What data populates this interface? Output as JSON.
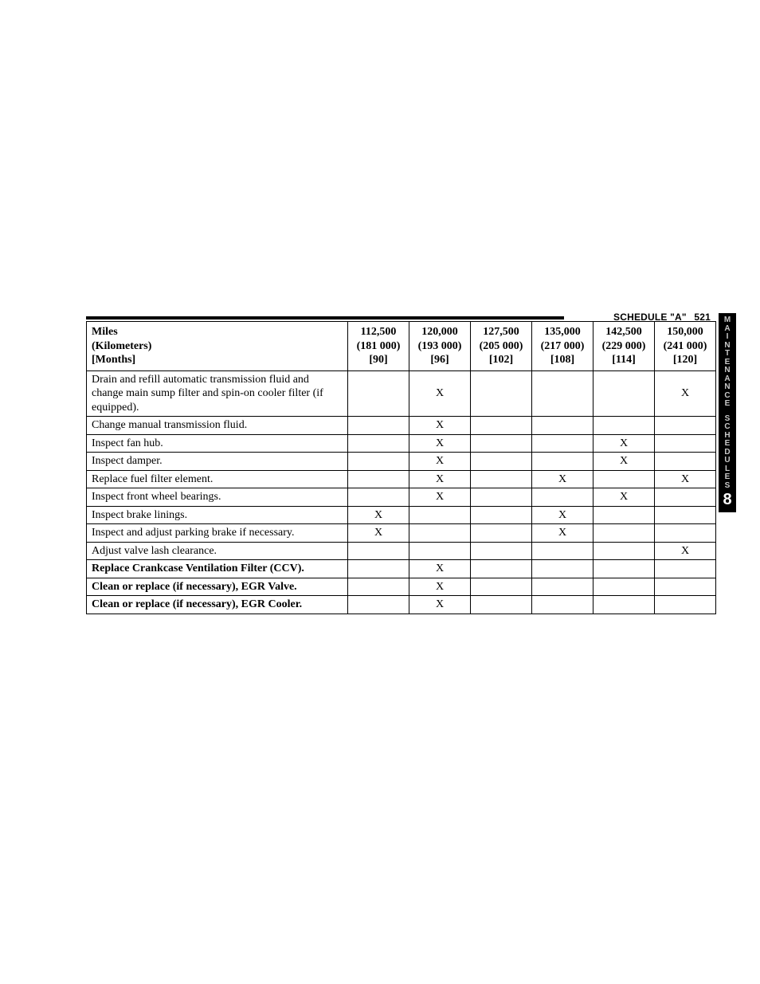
{
  "header": {
    "section_title": "SCHEDULE \"A\"",
    "page_number": "521"
  },
  "side_tab": {
    "line1": "MAINTENANCE",
    "line2": "SCHEDULES",
    "chapter": "8"
  },
  "table": {
    "row_header": {
      "miles_label": "Miles",
      "kilometers_label": "(Kilometers)",
      "months_label": "[Months]"
    },
    "columns": [
      {
        "miles": "112,500",
        "kms": "(181 000)",
        "months": "[90]"
      },
      {
        "miles": "120,000",
        "kms": "(193 000)",
        "months": "[96]"
      },
      {
        "miles": "127,500",
        "kms": "(205 000)",
        "months": "[102]"
      },
      {
        "miles": "135,000",
        "kms": "(217 000)",
        "months": "[108]"
      },
      {
        "miles": "142,500",
        "kms": "(229 000)",
        "months": "[114]"
      },
      {
        "miles": "150,000",
        "kms": "(241 000)",
        "months": "[120]"
      }
    ],
    "rows": [
      {
        "task": "Drain and refill automatic transmission fluid and change main sump filter and spin-on cooler filter (if equipped).",
        "bold": false,
        "marks": [
          "",
          "X",
          "",
          "",
          "",
          "X"
        ]
      },
      {
        "task": "Change manual transmission fluid.",
        "bold": false,
        "marks": [
          "",
          "X",
          "",
          "",
          "",
          ""
        ]
      },
      {
        "task": "Inspect fan hub.",
        "bold": false,
        "marks": [
          "",
          "X",
          "",
          "",
          "X",
          ""
        ]
      },
      {
        "task": "Inspect damper.",
        "bold": false,
        "marks": [
          "",
          "X",
          "",
          "",
          "X",
          ""
        ]
      },
      {
        "task": "Replace fuel filter element.",
        "bold": false,
        "marks": [
          "",
          "X",
          "",
          "X",
          "",
          "X"
        ]
      },
      {
        "task": "Inspect front wheel bearings.",
        "bold": false,
        "marks": [
          "",
          "X",
          "",
          "",
          "X",
          ""
        ]
      },
      {
        "task": "Inspect brake linings.",
        "bold": false,
        "marks": [
          "X",
          "",
          "",
          "X",
          "",
          ""
        ]
      },
      {
        "task": "Inspect and adjust parking brake if necessary.",
        "bold": false,
        "marks": [
          "X",
          "",
          "",
          "X",
          "",
          ""
        ]
      },
      {
        "task": "Adjust valve lash clearance.",
        "bold": false,
        "marks": [
          "",
          "",
          "",
          "",
          "",
          "X"
        ]
      },
      {
        "task": "Replace Crankcase Ventilation Filter (CCV).",
        "bold": true,
        "marks": [
          "",
          "X",
          "",
          "",
          "",
          ""
        ]
      },
      {
        "task": "Clean or replace (if necessary), EGR Valve.",
        "bold": true,
        "marks": [
          "",
          "X",
          "",
          "",
          "",
          ""
        ]
      },
      {
        "task": "Clean or replace (if necessary), EGR Cooler.",
        "bold": true,
        "marks": [
          "",
          "X",
          "",
          "",
          "",
          ""
        ]
      }
    ]
  }
}
